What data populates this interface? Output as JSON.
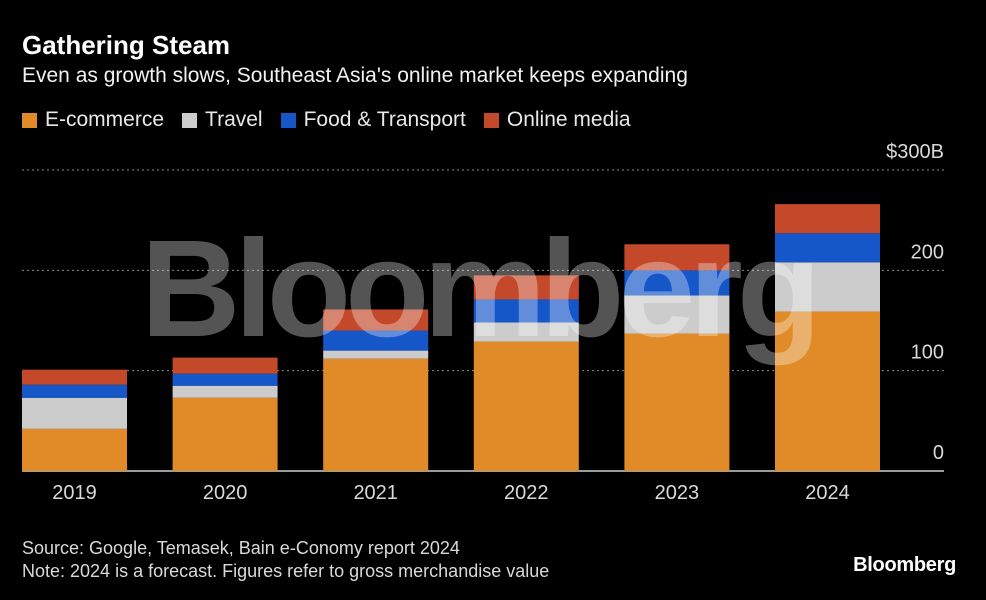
{
  "title": "Gathering Steam",
  "subtitle": "Even as growth slows, Southeast Asia's online market keeps expanding",
  "legend": [
    {
      "label": "E-commerce",
      "color": "#e08b27"
    },
    {
      "label": "Travel",
      "color": "#cccccc"
    },
    {
      "label": "Food & Transport",
      "color": "#1556c9"
    },
    {
      "label": "Online media",
      "color": "#c4482a"
    }
  ],
  "watermark": "Bloomberg",
  "footer": {
    "source": "Source: Google, Temasek, Bain e-Conomy report 2024",
    "note": "Note: 2024 is a forecast. Figures refer to gross merchandise value",
    "brand": "Bloomberg"
  },
  "chart_data": {
    "type": "bar",
    "stacked": true,
    "categories": [
      "2019",
      "2020",
      "2021",
      "2022",
      "2023",
      "2024"
    ],
    "series": [
      {
        "name": "E-commerce",
        "color": "#e08b27",
        "values": [
          42,
          73,
          112,
          129,
          137,
          159
        ]
      },
      {
        "name": "Travel",
        "color": "#cccccc",
        "values": [
          31,
          12,
          8,
          19,
          38,
          49
        ]
      },
      {
        "name": "Food & Transport",
        "color": "#1556c9",
        "values": [
          13,
          12,
          20,
          23,
          25,
          29
        ]
      },
      {
        "name": "Online media",
        "color": "#c4482a",
        "values": [
          15,
          16,
          21,
          24,
          26,
          29
        ]
      }
    ],
    "yticks": [
      0,
      100,
      200,
      300
    ],
    "ytick_labels": [
      "0",
      "100",
      "200",
      "$300B"
    ],
    "ylim": [
      0,
      300
    ],
    "grid": true,
    "legend_position": "top-left",
    "y_axis_position": "right"
  }
}
